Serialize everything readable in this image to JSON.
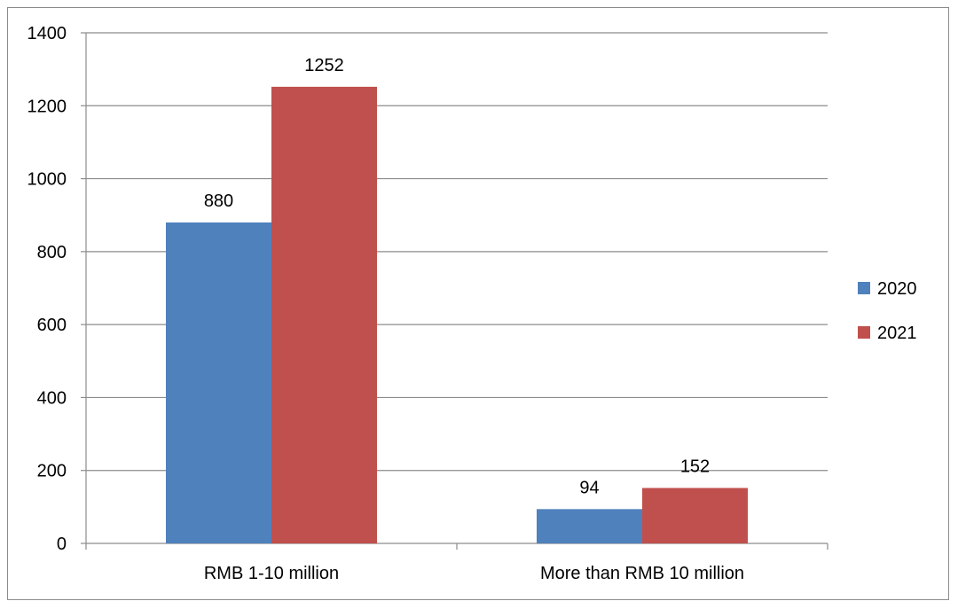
{
  "chart_data": {
    "type": "bar",
    "categories": [
      "RMB 1-10 million",
      "More than RMB 10 million"
    ],
    "series": [
      {
        "name": "2020",
        "values": [
          880,
          94
        ],
        "color": "#4f81bd"
      },
      {
        "name": "2021",
        "values": [
          1252,
          152
        ],
        "color": "#c0504d"
      }
    ],
    "ylim": [
      0,
      1400
    ],
    "yticks": [
      0,
      200,
      400,
      600,
      800,
      1000,
      1200,
      1400
    ],
    "grid": true,
    "legend_position": "right",
    "data_labels": true
  }
}
